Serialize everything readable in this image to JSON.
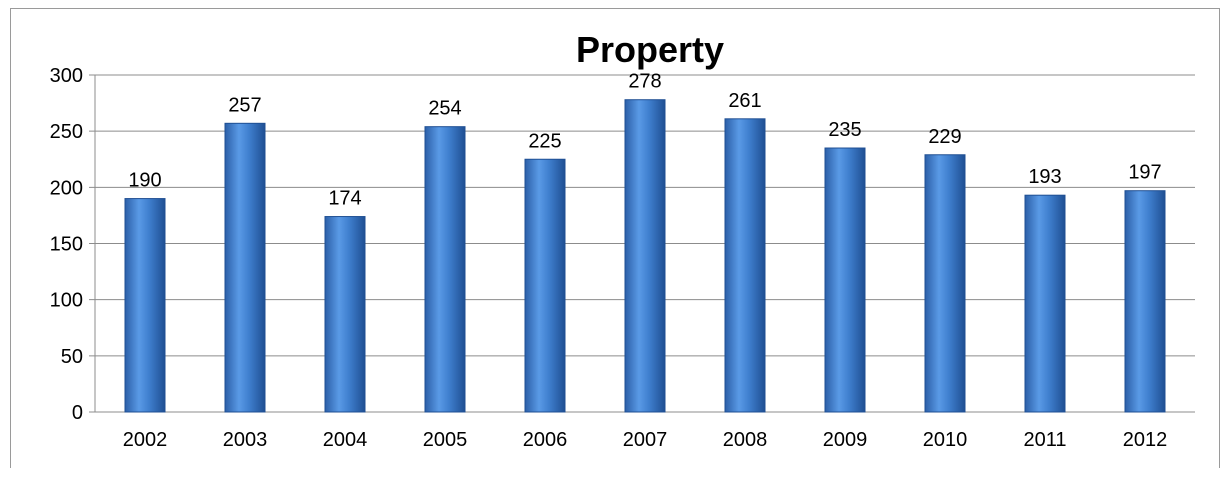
{
  "chart_data": {
    "type": "bar",
    "title": "Property",
    "xlabel": "",
    "ylabel": "",
    "categories": [
      "2002",
      "2003",
      "2004",
      "2005",
      "2006",
      "2007",
      "2008",
      "2009",
      "2010",
      "2011",
      "2012"
    ],
    "values": [
      190,
      257,
      174,
      254,
      225,
      278,
      261,
      235,
      229,
      193,
      197
    ],
    "ylim": [
      0,
      300
    ],
    "yticks": [
      0,
      50,
      100,
      150,
      200,
      250,
      300
    ],
    "grid": true,
    "legend": "none",
    "bar_color": "#3f7fce",
    "bar_color_dark": "#1f4f93",
    "gridline_color": "#8c8c8c"
  }
}
